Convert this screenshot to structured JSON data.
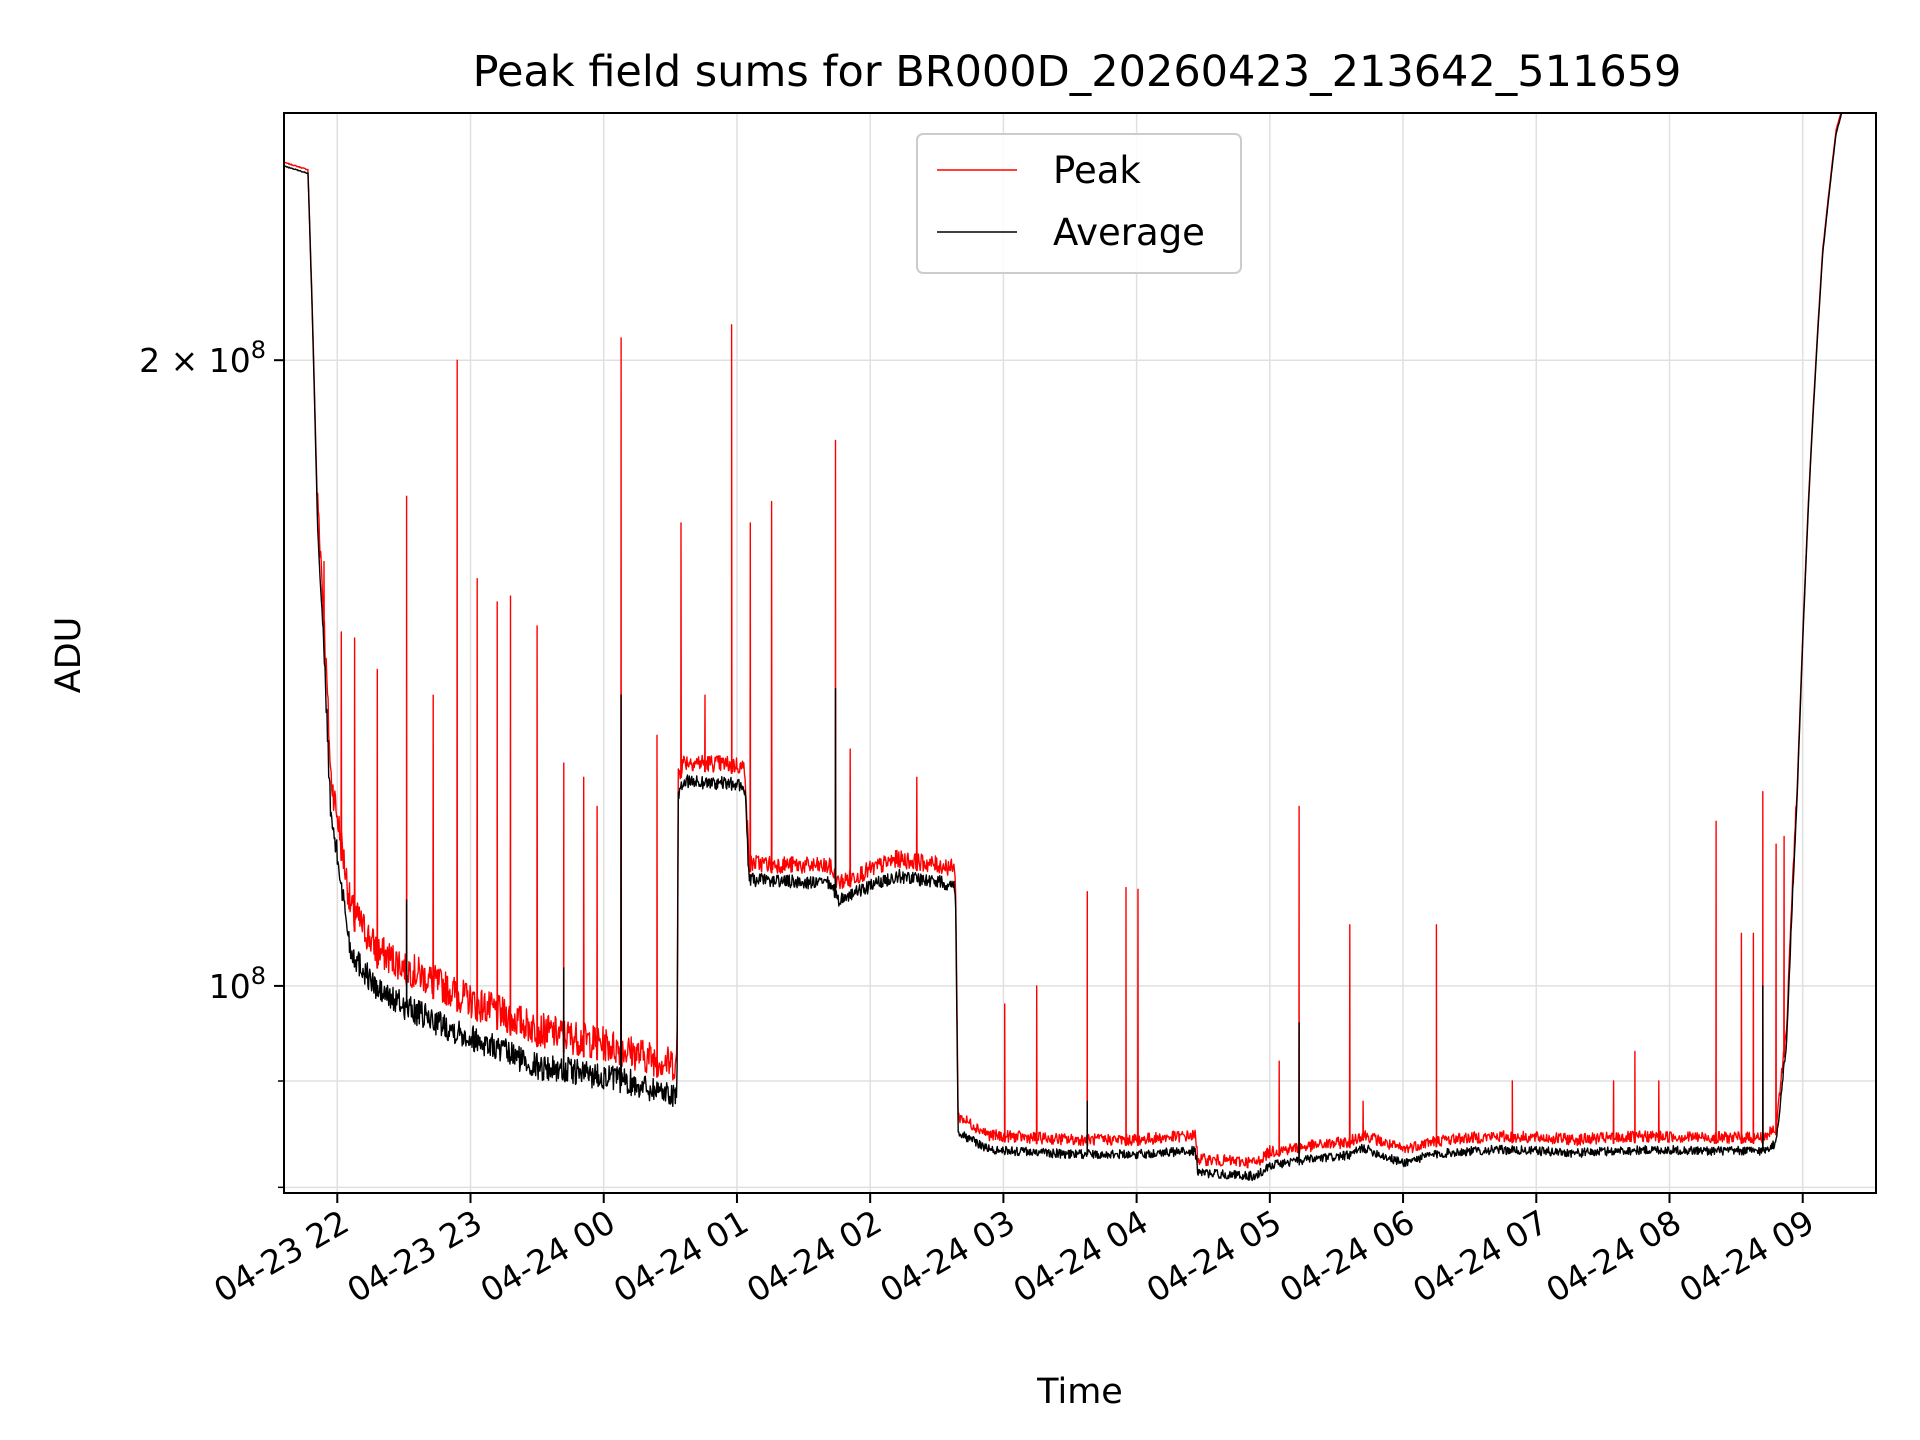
{
  "chart_data": {
    "type": "line",
    "title": "Peak field sums for BR000D_20260423_213642_511659",
    "xlabel": "Time",
    "ylabel": "ADU",
    "yscale": "log",
    "xlim_hours": [
      21.6,
      33.55
    ],
    "ylim": [
      79500000,
      263000000
    ],
    "grid": true,
    "legend_position": "upper-center",
    "x_tick_labels": [
      "04-23 22",
      "04-23 23",
      "04-24 00",
      "04-24 01",
      "04-24 02",
      "04-24 03",
      "04-24 04",
      "04-24 05",
      "04-24 06",
      "04-24 07",
      "04-24 08",
      "04-24 09"
    ],
    "x_tick_hours": [
      22,
      23,
      24,
      25,
      26,
      27,
      28,
      29,
      30,
      31,
      32,
      33
    ],
    "y_major_ticks": [
      {
        "value": 100000000,
        "label_base": "10",
        "label_exp": "8"
      },
      {
        "value": 200000000,
        "label_base": "2 × 10",
        "label_exp": "8"
      }
    ],
    "y_minor_ticks": [
      90000000,
      80000000
    ],
    "colors": {
      "peak": "#ff0000",
      "average": "#000000",
      "grid": "#e0e0e0"
    },
    "series": [
      {
        "name": "Peak",
        "color": "#ff0000",
        "base": [
          [
            21.6,
            249000000
          ],
          [
            21.78,
            247000000
          ],
          [
            21.85,
            170000000
          ],
          [
            21.95,
            124000000
          ],
          [
            22.1,
            107000000
          ],
          [
            22.3,
            102000000
          ],
          [
            22.6,
            99500000
          ],
          [
            23.0,
            96500000
          ],
          [
            23.5,
            93500000
          ],
          [
            24.0,
            92000000
          ],
          [
            24.5,
            90000000
          ],
          [
            24.55,
            90000000
          ],
          [
            24.56,
            125000000
          ],
          [
            24.6,
            127000000
          ],
          [
            25.0,
            126500000
          ],
          [
            25.06,
            126000000
          ],
          [
            25.09,
            113500000
          ],
          [
            25.7,
            113000000
          ],
          [
            25.76,
            111000000
          ],
          [
            26.2,
            114000000
          ],
          [
            26.6,
            113000000
          ],
          [
            26.64,
            112500000
          ],
          [
            26.66,
            86000000
          ],
          [
            26.9,
            84200000
          ],
          [
            27.5,
            83800000
          ],
          [
            28.0,
            83800000
          ],
          [
            28.44,
            84200000
          ],
          [
            28.46,
            82000000
          ],
          [
            28.9,
            81700000
          ],
          [
            29.0,
            82700000
          ],
          [
            29.3,
            83200000
          ],
          [
            29.6,
            83600000
          ],
          [
            29.7,
            84300000
          ],
          [
            29.9,
            83300000
          ],
          [
            30.0,
            82900000
          ],
          [
            30.2,
            83600000
          ],
          [
            30.4,
            83900000
          ],
          [
            30.7,
            84100000
          ],
          [
            31.0,
            84000000
          ],
          [
            31.3,
            83800000
          ],
          [
            31.6,
            84000000
          ],
          [
            31.9,
            84100000
          ],
          [
            32.3,
            84000000
          ],
          [
            32.7,
            84000000
          ],
          [
            32.8,
            84800000
          ],
          [
            32.88,
            95000000
          ],
          [
            32.96,
            125000000
          ],
          [
            33.05,
            175000000
          ],
          [
            33.15,
            226000000
          ],
          [
            33.25,
            258000000
          ],
          [
            33.3,
            265000000
          ]
        ],
        "spikes": [
          [
            21.9,
            160000000
          ],
          [
            22.03,
            148000000
          ],
          [
            22.13,
            147000000
          ],
          [
            22.3,
            142000000
          ],
          [
            22.52,
            172000000
          ],
          [
            22.72,
            138000000
          ],
          [
            22.9,
            200000000
          ],
          [
            23.05,
            157000000
          ],
          [
            23.2,
            153000000
          ],
          [
            23.3,
            154000000
          ],
          [
            23.5,
            149000000
          ],
          [
            23.7,
            128000000
          ],
          [
            23.85,
            126000000
          ],
          [
            23.95,
            122000000
          ],
          [
            24.13,
            205000000
          ],
          [
            24.4,
            132000000
          ],
          [
            24.58,
            167000000
          ],
          [
            24.76,
            138000000
          ],
          [
            24.96,
            208000000
          ],
          [
            25.1,
            167000000
          ],
          [
            25.26,
            171000000
          ],
          [
            25.74,
            183000000
          ],
          [
            25.85,
            130000000
          ],
          [
            26.35,
            126000000
          ],
          [
            27.01,
            98000000
          ],
          [
            27.25,
            100000000
          ],
          [
            27.63,
            111000000
          ],
          [
            27.92,
            111500000
          ],
          [
            28.01,
            111300000
          ],
          [
            29.07,
            92000000
          ],
          [
            29.22,
            122000000
          ],
          [
            29.6,
            107000000
          ],
          [
            29.7,
            88000000
          ],
          [
            30.25,
            107000000
          ],
          [
            30.82,
            90000000
          ],
          [
            31.58,
            90000000
          ],
          [
            31.74,
            93000000
          ],
          [
            31.92,
            90000000
          ],
          [
            32.35,
            120000000
          ],
          [
            32.54,
            106000000
          ],
          [
            32.63,
            106000000
          ],
          [
            32.7,
            124000000
          ],
          [
            32.8,
            117000000
          ],
          [
            32.86,
            118000000
          ]
        ]
      },
      {
        "name": "Average",
        "color": "#000000",
        "base": [
          [
            21.6,
            248000000
          ],
          [
            21.78,
            246000000
          ],
          [
            21.85,
            168000000
          ],
          [
            21.95,
            121000000
          ],
          [
            22.1,
            104000000
          ],
          [
            22.3,
            99500000
          ],
          [
            22.6,
            97000000
          ],
          [
            23.0,
            94500000
          ],
          [
            23.5,
            91500000
          ],
          [
            24.0,
            90500000
          ],
          [
            24.5,
            88800000
          ],
          [
            24.55,
            88800000
          ],
          [
            24.56,
            123000000
          ],
          [
            24.6,
            125500000
          ],
          [
            25.0,
            125000000
          ],
          [
            25.06,
            124500000
          ],
          [
            25.09,
            112500000
          ],
          [
            25.7,
            112000000
          ],
          [
            25.76,
            110000000
          ],
          [
            26.2,
            113000000
          ],
          [
            26.6,
            112000000
          ],
          [
            26.64,
            111500000
          ],
          [
            26.66,
            85000000
          ],
          [
            26.9,
            83400000
          ],
          [
            27.5,
            83000000
          ],
          [
            28.0,
            83000000
          ],
          [
            28.44,
            83300000
          ],
          [
            28.46,
            81300000
          ],
          [
            28.9,
            81000000
          ],
          [
            29.0,
            82000000
          ],
          [
            29.3,
            82500000
          ],
          [
            29.6,
            82900000
          ],
          [
            29.7,
            83600000
          ],
          [
            29.9,
            82600000
          ],
          [
            30.0,
            82200000
          ],
          [
            30.2,
            82900000
          ],
          [
            30.4,
            83200000
          ],
          [
            30.7,
            83400000
          ],
          [
            31.0,
            83300000
          ],
          [
            31.3,
            83100000
          ],
          [
            31.6,
            83300000
          ],
          [
            31.9,
            83400000
          ],
          [
            32.3,
            83300000
          ],
          [
            32.7,
            83300000
          ],
          [
            32.8,
            84000000
          ],
          [
            32.88,
            94000000
          ],
          [
            32.96,
            124000000
          ],
          [
            33.05,
            174000000
          ],
          [
            33.15,
            225000000
          ],
          [
            33.25,
            257000000
          ],
          [
            33.3,
            264000000
          ]
        ],
        "spikes": [
          [
            24.13,
            138000000
          ],
          [
            25.74,
            139000000
          ],
          [
            27.63,
            88000000
          ],
          [
            29.22,
            96000000
          ],
          [
            32.7,
            100000000
          ],
          [
            22.52,
            110000000
          ],
          [
            23.7,
            102000000
          ]
        ]
      }
    ]
  }
}
